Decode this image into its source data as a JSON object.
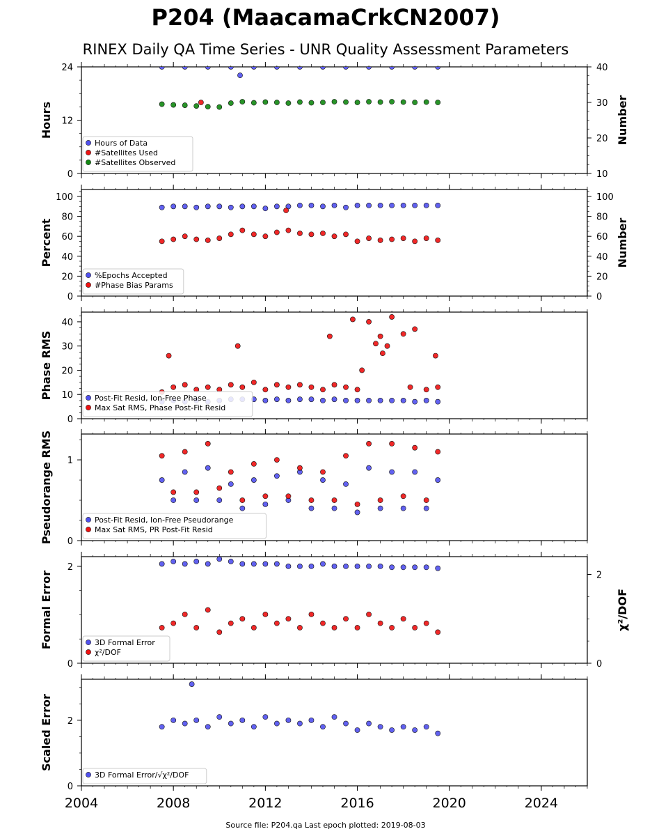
{
  "title": "P204 (MaacamaCrkCN2007)",
  "subtitle": "RINEX Daily QA Time Series - UNR Quality Assessment Parameters",
  "footer": "Source file: P204.qa Last epoch plotted: 2019-08-03",
  "colors": {
    "blue": "#5050ee",
    "red": "#ee1111",
    "green": "#118811",
    "edge": "#111111"
  },
  "chart_data": [
    {
      "type": "scatter",
      "name": "hours-panel",
      "xlim": [
        2004,
        2026
      ],
      "x_ticks": [
        2004,
        2008,
        2012,
        2016,
        2020,
        2024
      ],
      "ylabel": "Hours",
      "ylim": [
        0,
        24
      ],
      "y_ticks": [
        0,
        12,
        24
      ],
      "y2label": "Number",
      "y2lim": [
        10,
        40
      ],
      "y2_ticks": [
        10,
        20,
        30,
        40
      ],
      "legend": "bottom-left",
      "series": [
        {
          "name": "Hours of Data",
          "color": "blue",
          "axis": "left",
          "x": [
            2007.5,
            2008.5,
            2009.5,
            2010.5,
            2010.9,
            2011.5,
            2012.5,
            2013.5,
            2014.5,
            2015.5,
            2016.5,
            2017.5,
            2018.5,
            2019.5
          ],
          "y": [
            24,
            24,
            24,
            24,
            22.1,
            24,
            24,
            24,
            24,
            24,
            24,
            24,
            24,
            24
          ]
        },
        {
          "name": "#Satellites Used",
          "color": "red",
          "axis": "right",
          "x": [
            2009.2
          ],
          "y": [
            30
          ]
        },
        {
          "name": "#Satellites Observed",
          "color": "green",
          "axis": "right",
          "x": [
            2007.5,
            2008.0,
            2008.5,
            2009.0,
            2009.5,
            2010.0,
            2010.5,
            2011.0,
            2011.5,
            2012.0,
            2012.5,
            2013.0,
            2013.5,
            2014.0,
            2014.5,
            2015.0,
            2015.5,
            2016.0,
            2016.5,
            2017.0,
            2017.5,
            2018.0,
            2018.5,
            2019.0,
            2019.5
          ],
          "y": [
            29.5,
            29.3,
            29.2,
            29.0,
            28.8,
            28.7,
            29.8,
            30.2,
            29.9,
            30.1,
            30.0,
            29.8,
            30.1,
            29.9,
            30.0,
            30.2,
            30.1,
            30.0,
            30.2,
            30.1,
            30.2,
            30.1,
            30.0,
            30.1,
            30.0
          ]
        }
      ]
    },
    {
      "type": "scatter",
      "name": "percent-panel",
      "xlim": [
        2004,
        2026
      ],
      "x_ticks": [
        2004,
        2008,
        2012,
        2016,
        2020,
        2024
      ],
      "ylabel": "Percent",
      "ylim": [
        0,
        107
      ],
      "y_ticks": [
        0,
        20,
        40,
        60,
        80,
        100
      ],
      "y2label": "Number",
      "y2lim": [
        0,
        107
      ],
      "y2_ticks": [
        0,
        20,
        40,
        60,
        80,
        100
      ],
      "legend": "bottom-left",
      "series": [
        {
          "name": "%Epochs Accepted",
          "color": "blue",
          "axis": "left",
          "x": [
            2007.5,
            2008.0,
            2008.5,
            2009.0,
            2009.5,
            2010.0,
            2010.5,
            2011.0,
            2011.5,
            2012.0,
            2012.5,
            2013.0,
            2013.5,
            2014.0,
            2014.5,
            2015.0,
            2015.5,
            2016.0,
            2016.5,
            2017.0,
            2017.5,
            2018.0,
            2018.5,
            2019.0,
            2019.5
          ],
          "y": [
            89,
            90,
            90,
            89,
            90,
            90,
            89,
            90,
            90,
            88,
            90,
            90,
            91,
            91,
            90,
            91,
            89,
            91,
            91,
            91,
            91,
            91,
            91,
            91,
            91
          ]
        },
        {
          "name": "#Phase Bias Params",
          "color": "red",
          "axis": "right",
          "x": [
            2007.5,
            2008.0,
            2008.5,
            2009.0,
            2009.5,
            2010.0,
            2010.5,
            2011.0,
            2011.5,
            2012.0,
            2012.5,
            2012.9,
            2013.0,
            2013.5,
            2014.0,
            2014.5,
            2015.0,
            2015.5,
            2016.0,
            2016.5,
            2017.0,
            2017.5,
            2018.0,
            2018.5,
            2019.0,
            2019.5
          ],
          "y": [
            55,
            57,
            60,
            57,
            56,
            58,
            62,
            66,
            62,
            60,
            64,
            86,
            66,
            63,
            62,
            63,
            60,
            62,
            55,
            58,
            56,
            57,
            58,
            55,
            58,
            56
          ]
        }
      ]
    },
    {
      "type": "scatter",
      "name": "phase-rms-panel",
      "xlim": [
        2004,
        2026
      ],
      "x_ticks": [
        2004,
        2008,
        2012,
        2016,
        2020,
        2024
      ],
      "ylabel": "Phase RMS",
      "ylim": [
        0,
        44
      ],
      "y_ticks": [
        0,
        10,
        20,
        30,
        40
      ],
      "legend": "bottom-left",
      "series": [
        {
          "name": "Post-Fit Resid, Ion-Free Phase",
          "color": "blue",
          "axis": "left",
          "x": [
            2007.5,
            2008.0,
            2008.5,
            2009.0,
            2009.5,
            2010.0,
            2010.5,
            2011.0,
            2011.5,
            2012.0,
            2012.5,
            2013.0,
            2013.5,
            2014.0,
            2014.5,
            2015.0,
            2015.5,
            2016.0,
            2016.5,
            2017.0,
            2017.5,
            2018.0,
            2018.5,
            2019.0,
            2019.5
          ],
          "y": [
            7,
            7.5,
            7,
            7.5,
            7,
            7.5,
            8,
            8,
            8,
            7.5,
            8,
            7.5,
            8,
            8,
            7.5,
            8,
            7.5,
            7.5,
            7.5,
            7.5,
            7.5,
            7.5,
            7,
            7.5,
            7
          ]
        },
        {
          "name": "Max Sat RMS, Phase Post-Fit Resid",
          "color": "red",
          "axis": "left",
          "x": [
            2007.5,
            2007.8,
            2008.0,
            2008.5,
            2009.0,
            2009.5,
            2010.0,
            2010.5,
            2010.8,
            2011.0,
            2011.5,
            2012.0,
            2012.5,
            2013.0,
            2013.5,
            2014.0,
            2014.5,
            2014.8,
            2015.0,
            2015.5,
            2015.8,
            2016.0,
            2016.2,
            2016.5,
            2016.8,
            2017.0,
            2017.1,
            2017.3,
            2017.5,
            2018.0,
            2018.3,
            2018.5,
            2019.0,
            2019.4,
            2019.5
          ],
          "y": [
            11,
            26,
            13,
            14,
            12,
            13,
            12,
            14,
            30,
            13,
            15,
            12,
            14,
            13,
            14,
            13,
            12,
            34,
            14,
            13,
            41,
            12,
            20,
            40,
            31,
            34,
            27,
            30,
            42,
            35,
            13,
            37,
            12,
            26,
            13
          ]
        }
      ]
    },
    {
      "type": "scatter",
      "name": "pseudorange-rms-panel",
      "xlim": [
        2004,
        2026
      ],
      "x_ticks": [
        2004,
        2008,
        2012,
        2016,
        2020,
        2024
      ],
      "ylabel": "Pseudorange RMS",
      "ylim": [
        0,
        1.32
      ],
      "y_ticks": [
        0,
        1
      ],
      "legend": "bottom-left",
      "series": [
        {
          "name": "Post-Fit Resid, Ion-Free Pseudorange",
          "color": "blue",
          "axis": "left",
          "x": [
            2007.5,
            2008.0,
            2008.5,
            2009.0,
            2009.5,
            2010.0,
            2010.5,
            2011.0,
            2011.5,
            2012.0,
            2012.5,
            2013.0,
            2013.5,
            2014.0,
            2014.5,
            2015.0,
            2015.5,
            2016.0,
            2016.5,
            2017.0,
            2017.5,
            2018.0,
            2018.5,
            2019.0,
            2019.5
          ],
          "y": [
            0.75,
            0.5,
            0.85,
            0.5,
            0.9,
            0.5,
            0.7,
            0.4,
            0.75,
            0.45,
            0.8,
            0.5,
            0.85,
            0.4,
            0.75,
            0.4,
            0.7,
            0.35,
            0.9,
            0.4,
            0.85,
            0.4,
            0.85,
            0.4,
            0.75
          ]
        },
        {
          "name": "Max Sat RMS, PR Post-Fit Resid",
          "color": "red",
          "axis": "left",
          "x": [
            2007.5,
            2008.0,
            2008.5,
            2009.0,
            2009.5,
            2010.0,
            2010.5,
            2011.0,
            2011.5,
            2012.0,
            2012.5,
            2013.0,
            2013.5,
            2014.0,
            2014.5,
            2015.0,
            2015.5,
            2016.0,
            2016.5,
            2017.0,
            2017.5,
            2018.0,
            2018.5,
            2019.0,
            2019.5
          ],
          "y": [
            1.05,
            0.6,
            1.1,
            0.6,
            1.2,
            0.65,
            0.85,
            0.5,
            0.95,
            0.55,
            1.0,
            0.55,
            0.9,
            0.5,
            0.85,
            0.5,
            1.05,
            0.45,
            1.2,
            0.5,
            1.2,
            0.55,
            1.15,
            0.5,
            1.1
          ]
        }
      ]
    },
    {
      "type": "scatter",
      "name": "formal-error-panel",
      "xlim": [
        2004,
        2026
      ],
      "x_ticks": [
        2004,
        2008,
        2012,
        2016,
        2020,
        2024
      ],
      "ylabel": "Formal Error",
      "ylim": [
        0,
        2.2
      ],
      "y_ticks": [
        0,
        2
      ],
      "y2label": "χ²/DOF",
      "y2lim": [
        0,
        2.4
      ],
      "y2_ticks": [
        0,
        2
      ],
      "legend": "bottom-left",
      "series": [
        {
          "name": "3D Formal Error",
          "color": "blue",
          "axis": "left",
          "x": [
            2007.5,
            2008.0,
            2008.5,
            2009.0,
            2009.5,
            2010.0,
            2010.5,
            2011.0,
            2011.5,
            2012.0,
            2012.5,
            2013.0,
            2013.5,
            2014.0,
            2014.5,
            2015.0,
            2015.5,
            2016.0,
            2016.5,
            2017.0,
            2017.5,
            2018.0,
            2018.5,
            2019.0,
            2019.5
          ],
          "y": [
            2.05,
            2.1,
            2.05,
            2.1,
            2.05,
            2.15,
            2.1,
            2.05,
            2.05,
            2.05,
            2.05,
            2.0,
            2.0,
            2.0,
            2.05,
            2.0,
            2.0,
            2.0,
            2.0,
            2.0,
            1.98,
            1.98,
            1.98,
            1.98,
            1.96
          ]
        },
        {
          "name": "χ²/DOF",
          "color": "red",
          "axis": "right",
          "x": [
            2007.5,
            2008.0,
            2008.5,
            2009.0,
            2009.5,
            2010.0,
            2010.5,
            2011.0,
            2011.5,
            2012.0,
            2012.5,
            2013.0,
            2013.5,
            2014.0,
            2014.5,
            2015.0,
            2015.5,
            2016.0,
            2016.5,
            2017.0,
            2017.5,
            2018.0,
            2018.5,
            2019.0,
            2019.5
          ],
          "y": [
            0.8,
            0.9,
            1.1,
            0.8,
            1.2,
            0.7,
            0.9,
            1.0,
            0.8,
            1.1,
            0.9,
            1.0,
            0.8,
            1.1,
            0.9,
            0.8,
            1.0,
            0.8,
            1.1,
            0.9,
            0.8,
            1.0,
            0.8,
            0.9,
            0.7
          ]
        }
      ]
    },
    {
      "type": "scatter",
      "name": "scaled-error-panel",
      "xlim": [
        2004,
        2026
      ],
      "x_ticks": [
        2004,
        2008,
        2012,
        2016,
        2020,
        2024
      ],
      "ylabel": "Scaled Error",
      "ylim": [
        0,
        3.25
      ],
      "y_ticks": [
        0,
        2
      ],
      "legend": "bottom-left",
      "series": [
        {
          "name": "3D Formal Error/√χ²/DOF",
          "color": "blue",
          "axis": "left",
          "x": [
            2007.5,
            2008.0,
            2008.5,
            2008.8,
            2009.0,
            2009.5,
            2010.0,
            2010.5,
            2011.0,
            2011.5,
            2012.0,
            2012.5,
            2013.0,
            2013.5,
            2014.0,
            2014.5,
            2015.0,
            2015.5,
            2016.0,
            2016.5,
            2017.0,
            2017.5,
            2018.0,
            2018.5,
            2019.0,
            2019.5
          ],
          "y": [
            1.8,
            2.0,
            1.9,
            3.1,
            2.0,
            1.8,
            2.1,
            1.9,
            2.0,
            1.8,
            2.1,
            1.9,
            2.0,
            1.9,
            2.0,
            1.8,
            2.1,
            1.9,
            1.7,
            1.9,
            1.8,
            1.7,
            1.8,
            1.7,
            1.8,
            1.6
          ]
        }
      ]
    }
  ]
}
